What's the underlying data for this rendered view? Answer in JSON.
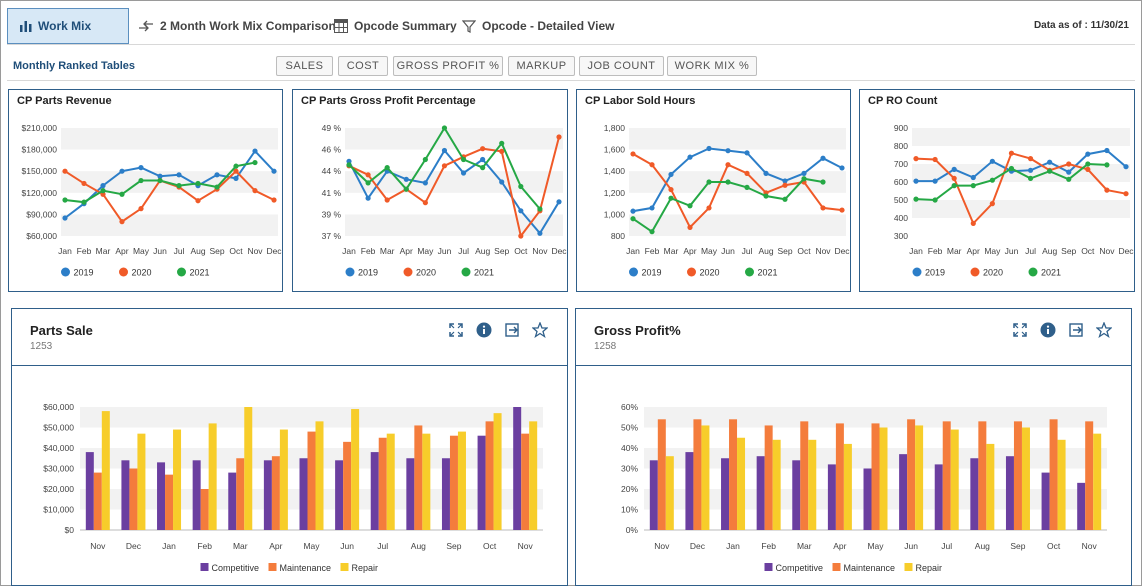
{
  "nav": {
    "tabs": [
      {
        "label": "Work Mix",
        "icon": "bar-chart-icon"
      },
      {
        "label": "2 Month Work Mix Comparison",
        "icon": "compare-arrows-icon"
      },
      {
        "label": "Opcode Summary",
        "icon": "table-icon"
      },
      {
        "label": "Opcode - Detailed View",
        "icon": "filter-icon"
      }
    ],
    "data_as_of": "Data as of : 11/30/21"
  },
  "ranked": {
    "title": "Monthly Ranked Tables",
    "buttons": [
      "SALES",
      "COST",
      "GROSS PROFIT %",
      "MARKUP",
      "JOB COUNT",
      "WORK MIX %"
    ]
  },
  "colors": {
    "s2019": "#2c7ec8",
    "s2020": "#f05a28",
    "s2021": "#25a845",
    "competitive": "#6b3fa0",
    "maintenance": "#f47c3c",
    "repair": "#f7cd2a"
  },
  "line_charts": [
    {
      "title": "CP Parts Revenue",
      "chart_data": {
        "type": "line",
        "x": [
          "Jan",
          "Feb",
          "Mar",
          "Apr",
          "May",
          "Jun",
          "Jul",
          "Aug",
          "Sep",
          "Oct",
          "Nov",
          "Dec"
        ],
        "yticks": [
          "$210,000",
          "$180,000",
          "$150,000",
          "$120,000",
          "$90,000",
          "$60,000"
        ],
        "ylim": [
          60000,
          210000
        ],
        "series": [
          {
            "name": "2019",
            "values": [
              85000,
              105000,
              130000,
              150000,
              155000,
              143000,
              145000,
              130000,
              145000,
              140000,
              178000,
              150000
            ]
          },
          {
            "name": "2020",
            "values": [
              150000,
              133000,
              118000,
              80000,
              98000,
              137000,
              128000,
              109000,
              125000,
              150000,
              123000,
              110000
            ]
          },
          {
            "name": "2021",
            "values": [
              110000,
              107000,
              123000,
              118000,
              137000,
              137000,
              130000,
              133000,
              128000,
              157000,
              162000,
              null
            ]
          }
        ],
        "legend": [
          "2019",
          "2020",
          "2021"
        ]
      }
    },
    {
      "title": "CP Parts Gross Profit Percentage",
      "chart_data": {
        "type": "line",
        "x": [
          "Jan",
          "Feb",
          "Mar",
          "Apr",
          "May",
          "Jun",
          "Jul",
          "Aug",
          "Sep",
          "Oct",
          "Nov",
          "Dec"
        ],
        "yticks": [
          "49 %",
          "46 %",
          "44 %",
          "41 %",
          "39 %",
          "37 %"
        ],
        "ylim": [
          37,
          49
        ],
        "series": [
          {
            "name": "2019",
            "values": [
              45.3,
              41.2,
              44.2,
              43.3,
              42.9,
              46.5,
              44.0,
              45.5,
              43.0,
              39.8,
              37.3,
              40.8
            ]
          },
          {
            "name": "2020",
            "values": [
              44.8,
              43.8,
              41.0,
              42.2,
              40.7,
              44.8,
              45.8,
              46.7,
              46.4,
              37.0,
              39.8,
              48.0
            ]
          },
          {
            "name": "2021",
            "values": [
              44.9,
              42.9,
              44.6,
              42.2,
              45.5,
              49.0,
              45.5,
              44.6,
              47.3,
              42.5,
              40.0,
              null
            ]
          }
        ],
        "legend": [
          "2019",
          "2020",
          "2021"
        ]
      }
    },
    {
      "title": "CP Labor Sold Hours",
      "chart_data": {
        "type": "line",
        "x": [
          "Jan",
          "Feb",
          "Mar",
          "Apr",
          "May",
          "Jun",
          "Jul",
          "Aug",
          "Sep",
          "Oct",
          "Nov",
          "Dec"
        ],
        "yticks": [
          "1,800",
          "1,600",
          "1,400",
          "1,200",
          "1,000",
          "800"
        ],
        "ylim": [
          800,
          1800
        ],
        "series": [
          {
            "name": "2019",
            "values": [
              1030,
              1060,
              1370,
              1530,
              1610,
              1590,
              1570,
              1380,
              1310,
              1380,
              1520,
              1430
            ]
          },
          {
            "name": "2020",
            "values": [
              1560,
              1460,
              1230,
              880,
              1060,
              1460,
              1380,
              1200,
              1270,
              1300,
              1060,
              1040
            ]
          },
          {
            "name": "2021",
            "values": [
              960,
              840,
              1150,
              1080,
              1300,
              1300,
              1250,
              1170,
              1140,
              1330,
              1300,
              null
            ]
          }
        ],
        "legend": [
          "2019",
          "2020",
          "2021"
        ]
      }
    },
    {
      "title": "CP RO Count",
      "chart_data": {
        "type": "line",
        "x": [
          "Jan",
          "Feb",
          "Mar",
          "Apr",
          "May",
          "Jun",
          "Jul",
          "Aug",
          "Sep",
          "Oct",
          "Nov",
          "Dec"
        ],
        "yticks": [
          "900",
          "800",
          "700",
          "600",
          "500",
          "400",
          "300"
        ],
        "ylim": [
          300,
          900
        ],
        "series": [
          {
            "name": "2019",
            "values": [
              605,
              605,
              670,
              625,
              715,
              660,
              665,
              710,
              655,
              755,
              775,
              685
            ]
          },
          {
            "name": "2020",
            "values": [
              730,
              725,
              620,
              370,
              480,
              760,
              730,
              665,
              700,
              670,
              555,
              535
            ]
          },
          {
            "name": "2021",
            "values": [
              505,
              500,
              580,
              580,
              610,
              675,
              620,
              660,
              615,
              700,
              695,
              null
            ]
          }
        ],
        "legend": [
          "2019",
          "2020",
          "2021"
        ]
      }
    }
  ],
  "bar_cards": [
    {
      "title": "Parts Sale",
      "subtitle": "1253",
      "icons": [
        "expand-icon",
        "info-icon",
        "export-icon",
        "star-icon"
      ],
      "chart_data": {
        "type": "bar",
        "categories": [
          "Nov",
          "Dec",
          "Jan",
          "Feb",
          "Mar",
          "Apr",
          "May",
          "Jun",
          "Jul",
          "Aug",
          "Sep",
          "Oct",
          "Nov"
        ],
        "yticks": [
          "$60,000",
          "$50,000",
          "$40,000",
          "$30,000",
          "$20,000",
          "$10,000",
          "$0"
        ],
        "ylim": [
          0,
          60000
        ],
        "series": [
          {
            "name": "Competitive",
            "values": [
              38000,
              34000,
              33000,
              34000,
              28000,
              34000,
              35000,
              34000,
              38000,
              35000,
              35000,
              46000,
              60000
            ]
          },
          {
            "name": "Maintenance",
            "values": [
              28000,
              30000,
              27000,
              20000,
              35000,
              36000,
              48000,
              43000,
              45000,
              51000,
              46000,
              53000,
              47000
            ]
          },
          {
            "name": "Repair",
            "values": [
              58000,
              47000,
              49000,
              52000,
              60000,
              49000,
              53000,
              59000,
              47000,
              47000,
              48000,
              57000,
              53000
            ]
          }
        ],
        "legend": [
          "Competitive",
          "Maintenance",
          "Repair"
        ]
      }
    },
    {
      "title": "Gross Profit%",
      "subtitle": "1258",
      "icons": [
        "expand-icon",
        "info-icon",
        "export-icon",
        "star-icon"
      ],
      "chart_data": {
        "type": "bar",
        "categories": [
          "Nov",
          "Dec",
          "Jan",
          "Feb",
          "Mar",
          "Apr",
          "May",
          "Jun",
          "Jul",
          "Aug",
          "Sep",
          "Oct",
          "Nov"
        ],
        "yticks": [
          "60%",
          "50%",
          "40%",
          "30%",
          "20%",
          "10%",
          "0%"
        ],
        "ylim": [
          0,
          60
        ],
        "series": [
          {
            "name": "Competitive",
            "values": [
              34,
              38,
              35,
              36,
              34,
              32,
              30,
              37,
              32,
              35,
              36,
              28,
              23
            ]
          },
          {
            "name": "Maintenance",
            "values": [
              54,
              54,
              54,
              51,
              53,
              52,
              52,
              54,
              53,
              53,
              53,
              54,
              53
            ]
          },
          {
            "name": "Repair",
            "values": [
              36,
              51,
              45,
              44,
              44,
              42,
              50,
              51,
              49,
              42,
              50,
              44,
              47
            ]
          }
        ],
        "legend": [
          "Competitive",
          "Maintenance",
          "Repair"
        ]
      }
    }
  ]
}
